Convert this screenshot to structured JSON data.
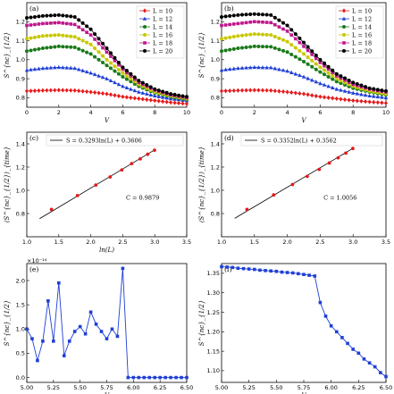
{
  "chart_data": [
    {
      "type": "line",
      "panel": "(a)",
      "xlabel": "V",
      "ylabel": "S^{nc}_{1/2}",
      "xlim": [
        0,
        10
      ],
      "ylim": [
        0.75,
        1.3
      ],
      "xticks": [
        "0",
        "2",
        "4",
        "6",
        "8",
        "10"
      ],
      "yticks": [
        "0.8",
        "0.9",
        "1.0",
        "1.1",
        "1.2"
      ],
      "legend": "top-right",
      "x": [
        0,
        1,
        2,
        3,
        4,
        5,
        6,
        7,
        8,
        9,
        10
      ],
      "series": [
        {
          "name": "L = 10",
          "color": "#e41a1c",
          "marker": "diamond",
          "values": [
            0.835,
            0.838,
            0.84,
            0.838,
            0.83,
            0.82,
            0.805,
            0.795,
            0.785,
            0.775,
            0.768
          ]
        },
        {
          "name": "L = 12",
          "color": "#1f3fd6",
          "marker": "triangle",
          "values": [
            0.945,
            0.955,
            0.96,
            0.955,
            0.93,
            0.9,
            0.86,
            0.83,
            0.81,
            0.795,
            0.785
          ]
        },
        {
          "name": "L = 14",
          "color": "#1a7a1a",
          "marker": "circle",
          "values": [
            1.045,
            1.06,
            1.07,
            1.065,
            1.03,
            0.97,
            0.91,
            0.86,
            0.825,
            0.805,
            0.79
          ]
        },
        {
          "name": "L = 16",
          "color": "#c8c800",
          "marker": "circle",
          "values": [
            1.11,
            1.125,
            1.13,
            1.12,
            1.08,
            1.0,
            0.93,
            0.87,
            0.83,
            0.81,
            0.795
          ]
        },
        {
          "name": "L = 18",
          "color": "#c0178c",
          "marker": "square",
          "values": [
            1.18,
            1.19,
            1.195,
            1.185,
            1.13,
            1.04,
            0.95,
            0.88,
            0.84,
            0.815,
            0.8
          ]
        },
        {
          "name": "L = 20",
          "color": "#000000",
          "marker": "circle",
          "values": [
            1.22,
            1.23,
            1.235,
            1.225,
            1.16,
            1.06,
            0.96,
            0.89,
            0.845,
            0.82,
            0.805
          ]
        }
      ]
    },
    {
      "type": "line",
      "panel": "(b)",
      "xlabel": "V",
      "ylabel": "S^{nc}_{1/2}",
      "xlim": [
        0,
        10
      ],
      "ylim": [
        0.75,
        1.3
      ],
      "xticks": [
        "0",
        "2",
        "4",
        "6",
        "8",
        "10"
      ],
      "yticks": [
        "0.8",
        "0.9",
        "1.0",
        "1.1",
        "1.2"
      ],
      "legend": "top-right",
      "x": [
        0,
        1,
        2,
        3,
        4,
        5,
        6,
        7,
        8,
        9,
        10
      ],
      "series": [
        {
          "name": "L = 10",
          "color": "#e41a1c",
          "marker": "diamond",
          "values": [
            0.835,
            0.838,
            0.84,
            0.838,
            0.83,
            0.82,
            0.805,
            0.795,
            0.785,
            0.778,
            0.772
          ]
        },
        {
          "name": "L = 12",
          "color": "#1f3fd6",
          "marker": "triangle",
          "values": [
            0.945,
            0.955,
            0.96,
            0.958,
            0.94,
            0.91,
            0.875,
            0.845,
            0.825,
            0.81,
            0.8
          ]
        },
        {
          "name": "L = 14",
          "color": "#1a7a1a",
          "marker": "circle",
          "values": [
            1.045,
            1.06,
            1.07,
            1.068,
            1.04,
            0.99,
            0.935,
            0.885,
            0.85,
            0.83,
            0.815
          ]
        },
        {
          "name": "L = 16",
          "color": "#c8c800",
          "marker": "circle",
          "values": [
            1.11,
            1.125,
            1.135,
            1.13,
            1.095,
            1.03,
            0.96,
            0.9,
            0.86,
            0.835,
            0.82
          ]
        },
        {
          "name": "L = 18",
          "color": "#c0178c",
          "marker": "square",
          "values": [
            1.18,
            1.19,
            1.2,
            1.195,
            1.15,
            1.07,
            0.985,
            0.915,
            0.87,
            0.845,
            0.83
          ]
        },
        {
          "name": "L = 20",
          "color": "#000000",
          "marker": "circle",
          "values": [
            1.225,
            1.235,
            1.24,
            1.235,
            1.18,
            1.09,
            1.0,
            0.925,
            0.88,
            0.85,
            0.835
          ]
        }
      ]
    },
    {
      "type": "scatter",
      "panel": "(c)",
      "xlabel": "ln(L)",
      "ylabel": "⟨S^{nc}_{1/2}⟩_{time}",
      "xlim": [
        1.0,
        3.5
      ],
      "ylim": [
        0.6,
        1.5
      ],
      "xticks": [
        "1.0",
        "1.5",
        "2.0",
        "2.5",
        "3.0",
        "3.5"
      ],
      "yticks": [
        "0.8",
        "1.0",
        "1.2",
        "1.4"
      ],
      "legend_label": "S = 0.3293ln(L) + 0.3606",
      "annotation": "C = 0.9879",
      "fit": {
        "slope": 0.3293,
        "intercept": 0.3606,
        "x0": 1.2,
        "x1": 3.0
      },
      "x": [
        1.386,
        1.792,
        2.079,
        2.303,
        2.485,
        2.639,
        2.773,
        2.89,
        2.996
      ],
      "y": [
        0.835,
        0.955,
        1.045,
        1.115,
        1.175,
        1.23,
        1.27,
        1.31,
        1.345
      ]
    },
    {
      "type": "scatter",
      "panel": "(d)",
      "xlabel": "",
      "ylabel": "⟨S^{nc}_{1/2}⟩_{time}",
      "xlim": [
        1.0,
        3.5
      ],
      "ylim": [
        0.6,
        1.5
      ],
      "xticks": [
        "1.0",
        "1.5",
        "2.0",
        "2.5",
        "3.0",
        "3.5"
      ],
      "yticks": [
        "0.8",
        "1.0",
        "1.2",
        "1.4"
      ],
      "legend_label": "S = 0.3352ln(L) + 0.3562",
      "annotation": "C = 1.0056",
      "fit": {
        "slope": 0.3352,
        "intercept": 0.3562,
        "x0": 1.2,
        "x1": 3.0
      },
      "x": [
        1.386,
        1.792,
        2.079,
        2.303,
        2.485,
        2.639,
        2.773,
        2.89,
        2.996
      ],
      "y": [
        0.835,
        0.96,
        1.05,
        1.12,
        1.18,
        1.235,
        1.28,
        1.32,
        1.36
      ]
    },
    {
      "type": "line",
      "panel": "(e)",
      "xlabel": "V",
      "ylabel": "S^{nc}_{1/2}",
      "offset_label": "×10⁻¹⁴",
      "xlim": [
        5.0,
        6.5
      ],
      "ylim": [
        -0.1,
        2.35
      ],
      "xticks": [
        "5.00",
        "5.25",
        "5.50",
        "5.75",
        "6.00",
        "6.25",
        "6.50"
      ],
      "yticks": [
        "0.0",
        "0.5",
        "1.0",
        "1.5",
        "2.0"
      ],
      "color": "#1f3fd6",
      "x": [
        5.0,
        5.05,
        5.1,
        5.15,
        5.2,
        5.25,
        5.3,
        5.35,
        5.4,
        5.45,
        5.5,
        5.55,
        5.6,
        5.65,
        5.7,
        5.75,
        5.8,
        5.85,
        5.9,
        5.95,
        6.0,
        6.05,
        6.1,
        6.15,
        6.2,
        6.25,
        6.3,
        6.35,
        6.4,
        6.45,
        6.5
      ],
      "y": [
        1.0,
        0.8,
        0.35,
        0.75,
        1.58,
        0.75,
        1.95,
        0.45,
        0.75,
        0.95,
        1.05,
        0.9,
        1.35,
        1.1,
        0.95,
        0.8,
        1.0,
        0.85,
        2.25,
        0.0,
        0.0,
        0.0,
        0.0,
        0.0,
        0.0,
        0.0,
        0.0,
        0.0,
        0.0,
        0.0,
        0.0
      ]
    },
    {
      "type": "line",
      "panel": "(f)",
      "xlabel": "V",
      "ylabel": "S^{nc}_{1/2}",
      "xlim": [
        5.0,
        6.5
      ],
      "ylim": [
        1.07,
        1.375
      ],
      "xticks": [
        "5.00",
        "5.25",
        "5.50",
        "5.75",
        "6.00",
        "6.25",
        "6.50"
      ],
      "yticks": [
        "1.10",
        "1.15",
        "1.20",
        "1.25",
        "1.30",
        "1.35"
      ],
      "color": "#1f3fd6",
      "x": [
        5.0,
        5.05,
        5.1,
        5.15,
        5.2,
        5.25,
        5.3,
        5.35,
        5.4,
        5.45,
        5.5,
        5.55,
        5.6,
        5.65,
        5.7,
        5.75,
        5.8,
        5.85,
        5.9,
        5.95,
        6.0,
        6.05,
        6.1,
        6.15,
        6.2,
        6.25,
        6.3,
        6.35,
        6.4,
        6.45,
        6.5
      ],
      "y": [
        1.367,
        1.366,
        1.365,
        1.363,
        1.362,
        1.361,
        1.36,
        1.358,
        1.357,
        1.356,
        1.355,
        1.353,
        1.352,
        1.351,
        1.349,
        1.347,
        1.345,
        1.343,
        1.275,
        1.24,
        1.215,
        1.2,
        1.185,
        1.17,
        1.155,
        1.145,
        1.13,
        1.12,
        1.11,
        1.095,
        1.085
      ]
    }
  ]
}
